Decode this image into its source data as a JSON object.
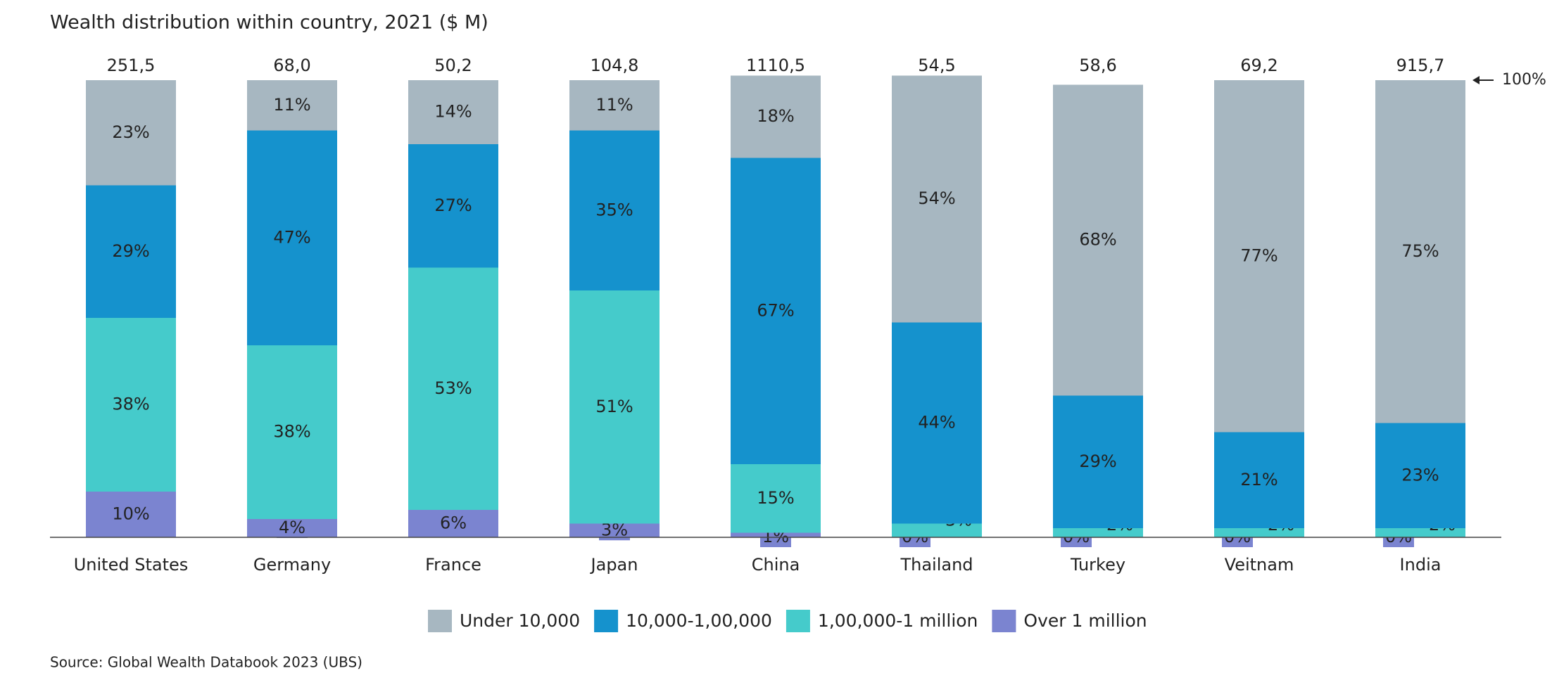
{
  "chart_data": {
    "type": "stacked-bar",
    "title": "Wealth distribution within country, 2021 ($ M)",
    "categories": [
      "United States",
      "Germany",
      "France",
      "Japan",
      "China",
      "Thailand",
      "Turkey",
      "Veitnam",
      "India"
    ],
    "series": [
      {
        "name": "Under 10,000",
        "color": "#a7b7c1",
        "values": [
          23,
          11,
          14,
          11,
          18,
          54,
          68,
          77,
          75
        ],
        "value_labels": [
          "23%",
          "11%",
          "14%",
          "11%",
          "18%",
          "54%",
          "68%",
          "77%",
          "75%"
        ]
      },
      {
        "name": "10,000-1,00,000",
        "color": "#1592cd",
        "values": [
          29,
          47,
          27,
          35,
          67,
          44,
          29,
          21,
          23
        ],
        "value_labels": [
          "29%",
          "47%",
          "27%",
          "35%",
          "67%",
          "44%",
          "29%",
          "21%",
          "23%"
        ]
      },
      {
        "name": "1,00,000-1 million",
        "color": "#45cbcb",
        "values": [
          38,
          38,
          53,
          51,
          15,
          3,
          2,
          2,
          2
        ],
        "value_labels": [
          "38%",
          "38%",
          "53%",
          "51%",
          "15%",
          "3%",
          "2%",
          "2%",
          "2%"
        ]
      },
      {
        "name": "Over 1 million",
        "color": "#7b84d0",
        "values": [
          10,
          4,
          6,
          3,
          1,
          0,
          0,
          0,
          0
        ],
        "value_labels": [
          "10%",
          "4%",
          "6%",
          "3%",
          "1%",
          "0%",
          "0%",
          "0%",
          "0%"
        ]
      }
    ],
    "totals": {
      "values": [
        251.5,
        68.0,
        50.2,
        104.8,
        1110.5,
        54.5,
        58.6,
        69.2,
        915.7
      ],
      "value_labels": [
        "251,5",
        "68,0",
        "50,2",
        "104,8",
        "1110,5",
        "54,5",
        "58,6",
        "69,2",
        "915,7"
      ]
    },
    "ylim": [
      0,
      100
    ],
    "yticks": [
      {
        "value": 100,
        "label": "100%"
      }
    ],
    "source": "Source: Global Wealth Databook 2023 (UBS)"
  }
}
